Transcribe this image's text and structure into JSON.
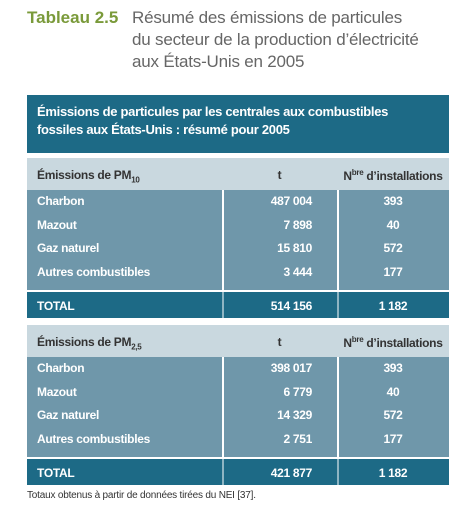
{
  "title": {
    "label": "Tableau 2.5",
    "lines": [
      "Résumé des émissions de particules",
      "du secteur de la production d’électricité",
      "aux États-Unis en 2005"
    ]
  },
  "table": {
    "caption": [
      "Émissions de particules par les centrales aux combustibles",
      "fossiles aux États-Unis : résumé pour 2005"
    ],
    "sections": [
      {
        "header": {
          "label": "Émissions de PM",
          "sub": "10",
          "unit": "t",
          "count_prefix": "N",
          "count_sup": "bre",
          "count_suffix": " d’installations"
        },
        "rows": [
          [
            "Charbon",
            "487 004",
            "393"
          ],
          [
            "Mazout",
            "7 898",
            "40"
          ],
          [
            "Gaz naturel",
            "15 810",
            "572"
          ],
          [
            "Autres combustibles",
            "3 444",
            "177"
          ]
        ],
        "total": [
          "TOTAL",
          "514 156",
          "1 182"
        ]
      },
      {
        "header": {
          "label": "Émissions de PM",
          "sub": "2,5",
          "unit": "t",
          "count_prefix": "N",
          "count_sup": "bre",
          "count_suffix": " d’installations"
        },
        "rows": [
          [
            "Charbon",
            "398 017",
            "393"
          ],
          [
            "Mazout",
            "6 779",
            "40"
          ],
          [
            "Gaz naturel",
            "14 329",
            "572"
          ],
          [
            "Autres combustibles",
            "2 751",
            "177"
          ]
        ],
        "total": [
          "TOTAL",
          "421 877",
          "1 182"
        ]
      }
    ]
  },
  "footnote": "Totaux obtenus à partir de données tirées du NEI [37]."
}
